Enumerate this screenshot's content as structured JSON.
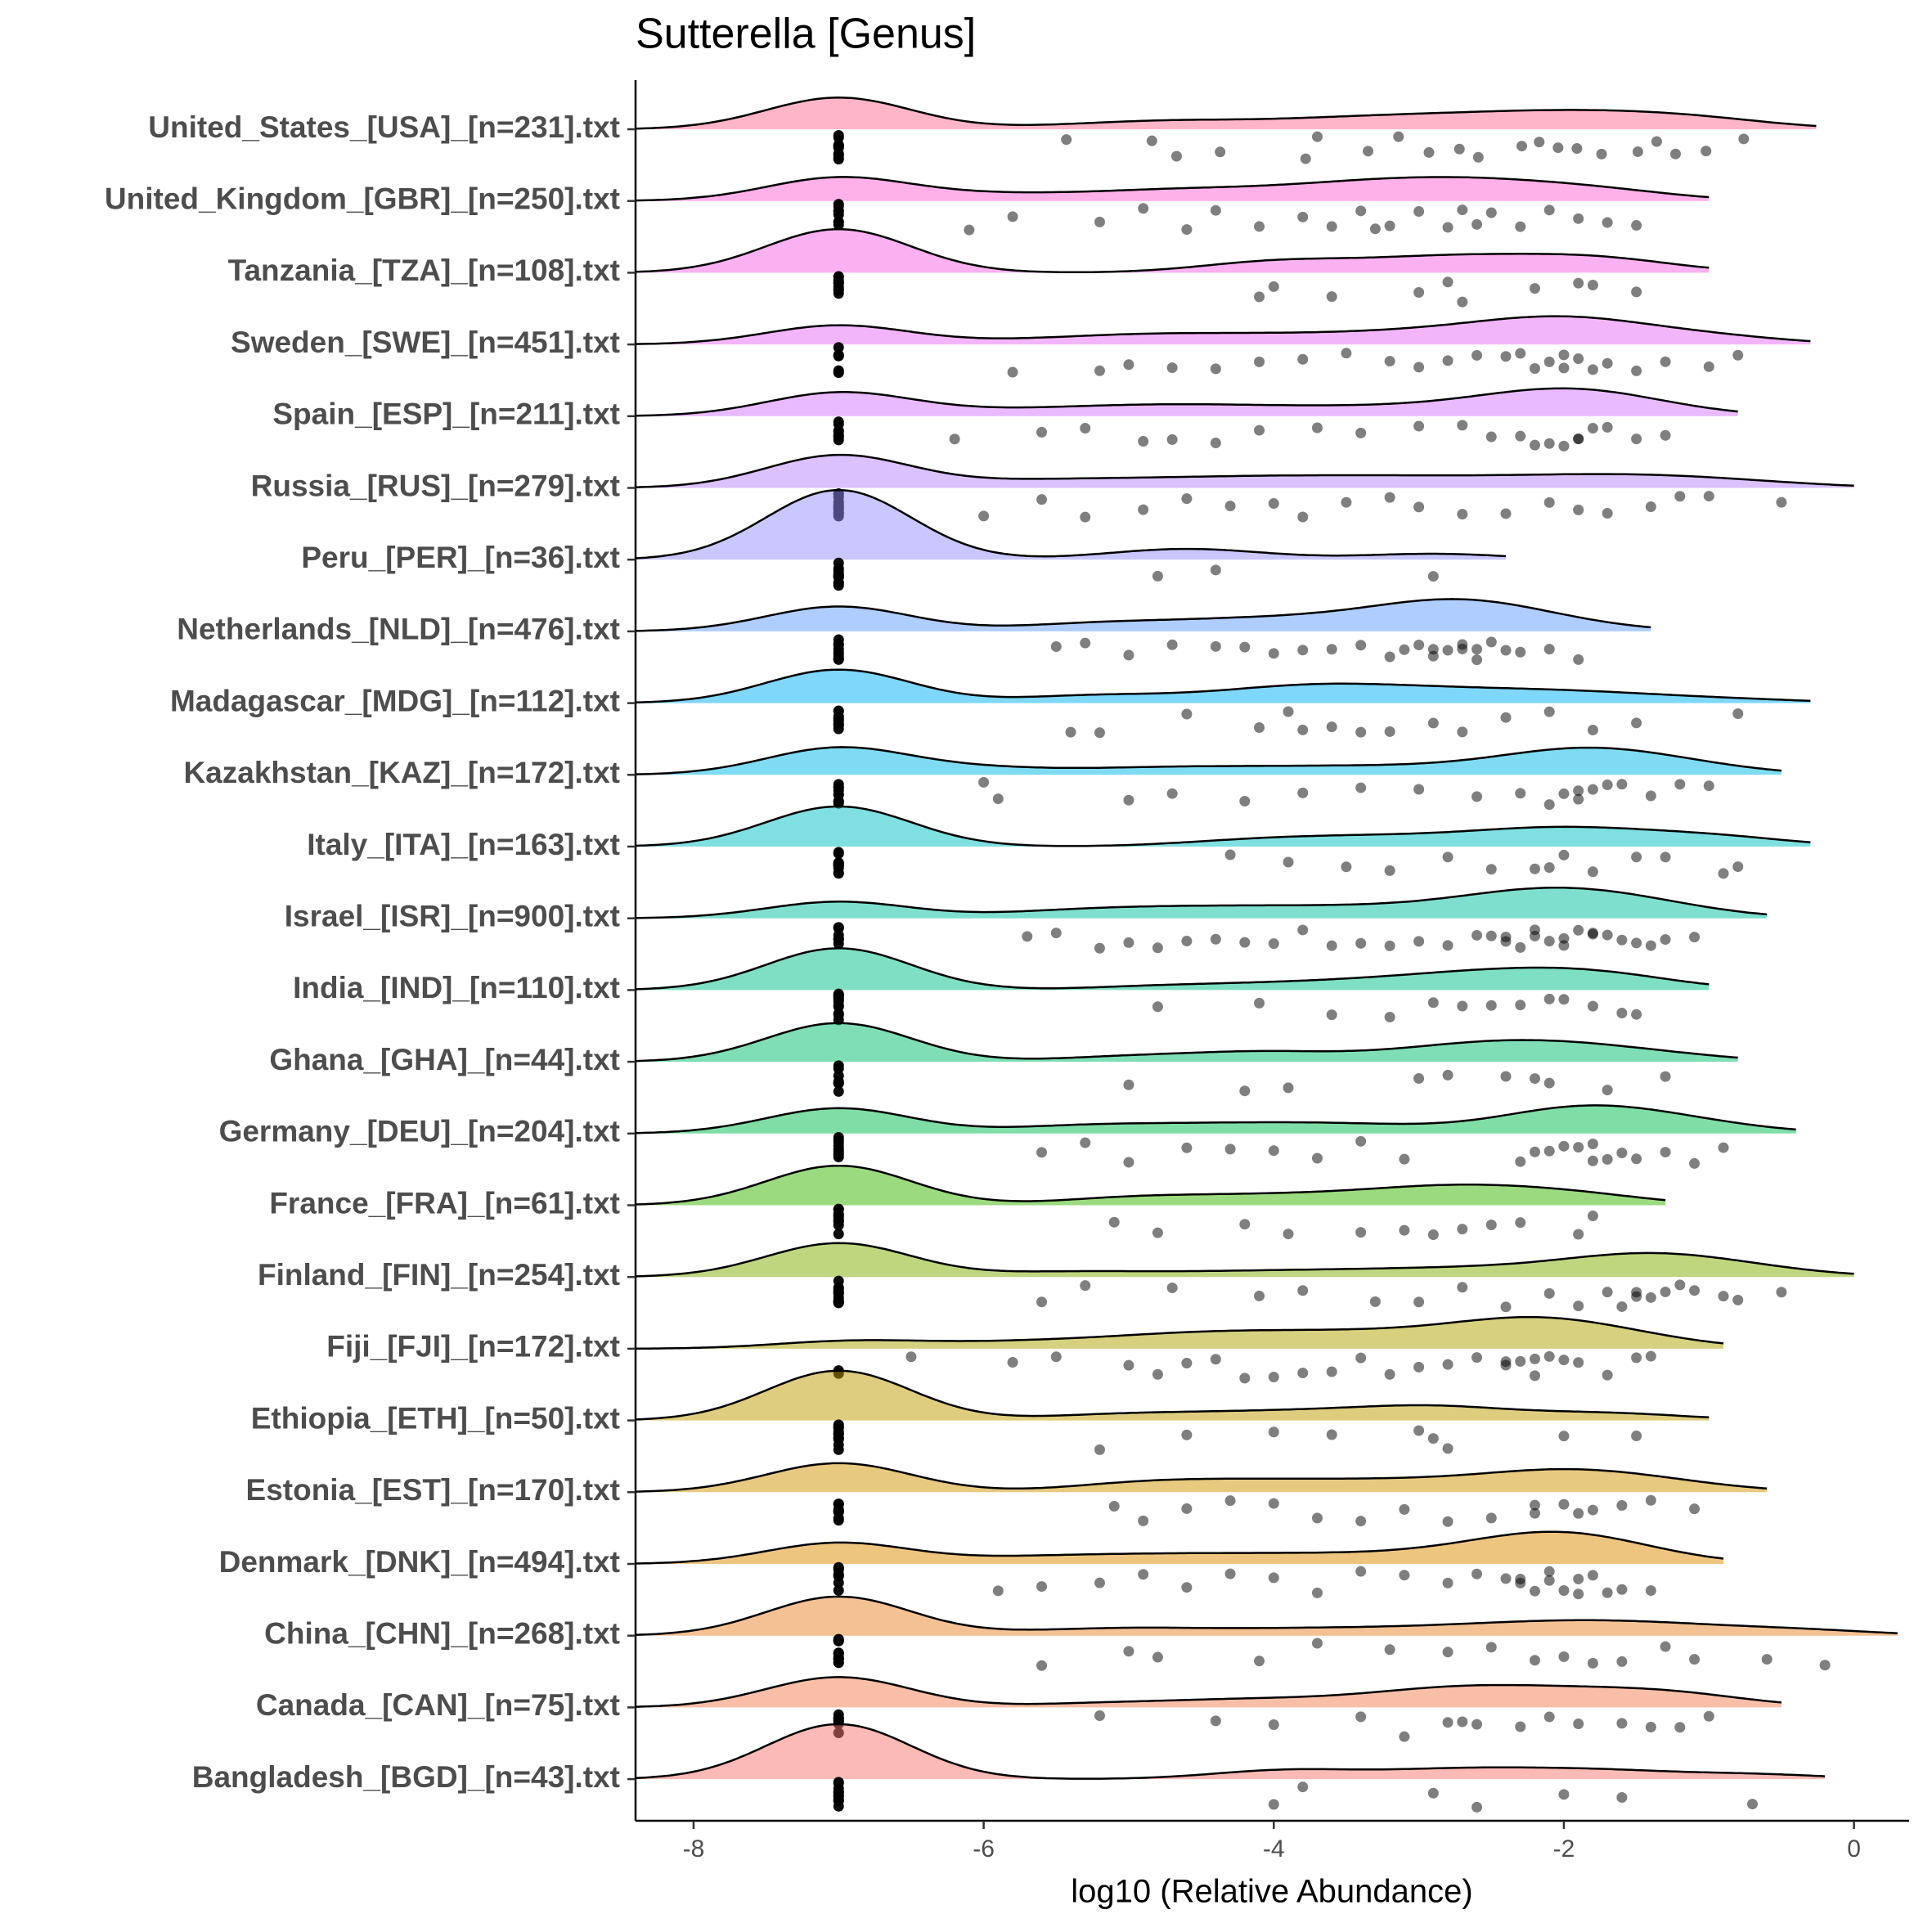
{
  "chart_data": {
    "type": "raincloud",
    "title": "Sutterella [Genus]",
    "x_label": "log10 (Relative Abundance)",
    "xlim": [
      -8.4,
      0.38
    ],
    "xticks": [
      -8,
      -6,
      -4,
      -2,
      0
    ],
    "series": [
      {
        "name": "United_States_[USA]_[n=231].txt",
        "color": "#FF6C91",
        "values": [
          -7,
          -7,
          -7,
          -7,
          -7,
          -7,
          -7,
          -7,
          -7,
          -7,
          -7,
          -7,
          -5.43,
          -4.84,
          -4.67,
          -4.37,
          -3.78,
          -3.7,
          -3.35,
          -3.14,
          -2.93,
          -2.72,
          -2.59,
          -2.29,
          -2.17,
          -2.04,
          -1.91,
          -1.74,
          -1.49,
          -1.36,
          -1.23,
          -1.02,
          -0.76
        ]
      },
      {
        "name": "United_Kingdom_[GBR]_[n=250].txt",
        "color": "#FD61D1",
        "values": [
          -7,
          -7,
          -7,
          -7,
          -7,
          -7,
          -7,
          -7,
          -6.1,
          -5.8,
          -5.2,
          -4.9,
          -4.6,
          -4.4,
          -4.1,
          -3.8,
          -3.6,
          -3.4,
          -3.2,
          -3.0,
          -2.8,
          -2.6,
          -2.5,
          -2.3,
          -2.1,
          -1.9,
          -1.7,
          -1.5,
          -2.7,
          -3.3
        ]
      },
      {
        "name": "Tanzania_[TZA]_[n=108].txt",
        "color": "#F564E3",
        "values": [
          -7,
          -7,
          -7,
          -7,
          -7,
          -7,
          -7,
          -7,
          -7,
          -7,
          -4.1,
          -4.0,
          -3.6,
          -3.0,
          -2.8,
          -2.7,
          -2.2,
          -1.9,
          -1.8,
          -1.5
        ]
      },
      {
        "name": "Sweden_[SWE]_[n=451].txt",
        "color": "#E76BF3",
        "values": [
          -7,
          -7,
          -7,
          -7,
          -7,
          -7,
          -7,
          -5.8,
          -5.2,
          -5.0,
          -4.7,
          -4.4,
          -4.1,
          -3.8,
          -3.5,
          -3.2,
          -3.0,
          -2.8,
          -2.6,
          -2.4,
          -2.2,
          -2.1,
          -2.0,
          -1.9,
          -1.8,
          -1.7,
          -1.5,
          -1.3,
          -1.0,
          -0.8,
          -2.3,
          -2.0
        ]
      },
      {
        "name": "Spain_[ESP]_[n=211].txt",
        "color": "#D376FF",
        "values": [
          -7,
          -7,
          -7,
          -7,
          -7,
          -7,
          -7,
          -7,
          -6.2,
          -5.6,
          -5.3,
          -4.9,
          -4.7,
          -4.4,
          -4.1,
          -3.7,
          -3.4,
          -3.0,
          -2.7,
          -2.5,
          -2.3,
          -2.1,
          -2.0,
          -1.9,
          -1.8,
          -1.7,
          -1.5,
          -1.3,
          -1.9,
          -2.2
        ]
      },
      {
        "name": "Russia_[RUS]_[n=279].txt",
        "color": "#B983FF",
        "values": [
          -7,
          -7,
          -7,
          -7,
          -7,
          -7,
          -7,
          -7,
          -7,
          -7,
          -7,
          -7,
          -6.0,
          -5.6,
          -5.3,
          -4.9,
          -4.6,
          -4.3,
          -4.0,
          -3.8,
          -3.5,
          -3.2,
          -3.0,
          -2.7,
          -2.4,
          -2.1,
          -1.9,
          -1.7,
          -1.4,
          -1.2,
          -1.0,
          -0.5
        ]
      },
      {
        "name": "Peru_[PER]_[n=36].txt",
        "color": "#9590FF",
        "values": [
          -7,
          -7,
          -7,
          -7,
          -7,
          -7,
          -7,
          -7,
          -7,
          -7,
          -7,
          -7,
          -4.8,
          -4.4,
          -2.9
        ]
      },
      {
        "name": "Netherlands_[NLD]_[n=476].txt",
        "color": "#619CFF",
        "values": [
          -7,
          -7,
          -7,
          -7,
          -7,
          -7,
          -7,
          -7,
          -7,
          -7,
          -5.5,
          -5.3,
          -5.0,
          -4.7,
          -4.4,
          -4.2,
          -4.0,
          -3.8,
          -3.6,
          -3.4,
          -3.2,
          -3.0,
          -2.9,
          -2.8,
          -2.7,
          -2.6,
          -2.5,
          -2.4,
          -2.3,
          -2.1,
          -1.9,
          -3.1,
          -2.7,
          -2.9,
          -2.6
        ]
      },
      {
        "name": "Madagascar_[MDG]_[n=112].txt",
        "color": "#00B0F6",
        "values": [
          -7,
          -7,
          -7,
          -7,
          -7,
          -7,
          -7,
          -7,
          -7,
          -7,
          -5.4,
          -5.2,
          -4.6,
          -4.1,
          -3.9,
          -3.6,
          -3.4,
          -3.2,
          -2.9,
          -2.7,
          -2.4,
          -2.1,
          -1.8,
          -1.5,
          -0.8,
          -3.8
        ]
      },
      {
        "name": "Kazakhstan_[KAZ]_[n=172].txt",
        "color": "#00B8E5",
        "values": [
          -7,
          -7,
          -7,
          -7,
          -7,
          -7,
          -7,
          -7,
          -7,
          -6.0,
          -5.9,
          -5.0,
          -4.7,
          -4.2,
          -3.8,
          -3.4,
          -3.0,
          -2.6,
          -2.3,
          -2.1,
          -1.9,
          -1.8,
          -1.7,
          -1.6,
          -1.4,
          -1.2,
          -1.0,
          -1.9,
          -2.0
        ]
      },
      {
        "name": "Italy_[ITA]_[n=163].txt",
        "color": "#00BFC4",
        "values": [
          -7,
          -7,
          -7,
          -7,
          -7,
          -7,
          -7,
          -7,
          -7,
          -7,
          -7,
          -7,
          -4.3,
          -3.9,
          -3.5,
          -3.2,
          -2.8,
          -2.5,
          -2.2,
          -2.0,
          -1.8,
          -1.5,
          -1.3,
          -0.9,
          -0.8,
          -2.1
        ]
      },
      {
        "name": "Israel_[ISR]_[n=900].txt",
        "color": "#00C0A0",
        "values": [
          -7,
          -7,
          -7,
          -7,
          -7,
          -7,
          -7,
          -7,
          -5.7,
          -5.5,
          -5.2,
          -5.0,
          -4.8,
          -4.6,
          -4.4,
          -4.2,
          -4.0,
          -3.8,
          -3.6,
          -3.4,
          -3.2,
          -3.0,
          -2.8,
          -2.6,
          -2.5,
          -2.4,
          -2.3,
          -2.2,
          -2.1,
          -2.0,
          -1.9,
          -1.8,
          -1.7,
          -1.6,
          -1.5,
          -1.4,
          -1.3,
          -1.1,
          -2.2,
          -2.0,
          -2.4,
          -1.8
        ]
      },
      {
        "name": "India_[IND]_[n=110].txt",
        "color": "#00BF87",
        "values": [
          -7,
          -7,
          -7,
          -7,
          -7,
          -7,
          -7,
          -7,
          -7,
          -7,
          -7,
          -7,
          -4.8,
          -4.1,
          -3.6,
          -3.2,
          -2.9,
          -2.7,
          -2.5,
          -2.3,
          -2.1,
          -2.0,
          -1.8,
          -1.6,
          -1.5
        ]
      },
      {
        "name": "Ghana_[GHA]_[n=44].txt",
        "color": "#00BE6C",
        "values": [
          -7,
          -7,
          -7,
          -7,
          -7,
          -7,
          -7,
          -7,
          -5.0,
          -4.2,
          -3.9,
          -3.0,
          -2.8,
          -2.4,
          -2.2,
          -2.1,
          -1.7,
          -1.3
        ]
      },
      {
        "name": "Germany_[DEU]_[n=204].txt",
        "color": "#00BB4E",
        "values": [
          -7,
          -7,
          -7,
          -7,
          -7,
          -7,
          -7,
          -7,
          -7,
          -5.6,
          -5.3,
          -5.0,
          -4.6,
          -4.3,
          -4.0,
          -3.7,
          -3.4,
          -3.1,
          -2.3,
          -2.1,
          -2.0,
          -1.9,
          -1.8,
          -1.7,
          -1.6,
          -1.5,
          -1.3,
          -1.1,
          -0.9,
          -1.8,
          -2.2
        ]
      },
      {
        "name": "France_[FRA]_[n=61].txt",
        "color": "#39B600",
        "values": [
          -7,
          -7,
          -7,
          -7,
          -7,
          -7,
          -7,
          -7,
          -7,
          -7,
          -5.1,
          -4.8,
          -4.2,
          -3.9,
          -3.4,
          -3.1,
          -2.9,
          -2.7,
          -2.5,
          -2.3,
          -1.9,
          -1.8
        ]
      },
      {
        "name": "Finland_[FIN]_[n=254].txt",
        "color": "#7FAE00",
        "values": [
          -7,
          -7,
          -7,
          -7,
          -7,
          -7,
          -7,
          -7,
          -7,
          -7,
          -7,
          -7,
          -7,
          -7,
          -5.6,
          -5.3,
          -4.7,
          -4.1,
          -3.8,
          -3.3,
          -3.0,
          -2.7,
          -2.4,
          -2.1,
          -1.9,
          -1.7,
          -1.6,
          -1.5,
          -1.4,
          -1.3,
          -1.2,
          -1.1,
          -0.9,
          -0.8,
          -0.5,
          -1.5
        ]
      },
      {
        "name": "Fiji_[FJI]_[n=172].txt",
        "color": "#AEA200",
        "values": [
          -7,
          -7,
          -6.5,
          -5.8,
          -5.5,
          -5.0,
          -4.8,
          -4.6,
          -4.4,
          -4.2,
          -4.0,
          -3.8,
          -3.6,
          -3.4,
          -3.2,
          -3.0,
          -2.8,
          -2.6,
          -2.4,
          -2.3,
          -2.2,
          -2.1,
          -2.0,
          -1.9,
          -1.7,
          -1.5,
          -1.4,
          -2.4,
          -2.2
        ]
      },
      {
        "name": "Ethiopia_[ETH]_[n=50].txt",
        "color": "#C09B00",
        "values": [
          -7,
          -7,
          -7,
          -7,
          -7,
          -7,
          -7,
          -7,
          -7,
          -7,
          -7,
          -7,
          -5.2,
          -4.6,
          -4.0,
          -3.6,
          -3.0,
          -2.9,
          -2.8,
          -2.0,
          -1.5
        ]
      },
      {
        "name": "Estonia_[EST]_[n=170].txt",
        "color": "#D09400",
        "values": [
          -7,
          -7,
          -7,
          -7,
          -7,
          -7,
          -7,
          -7,
          -7,
          -5.1,
          -4.9,
          -4.6,
          -4.3,
          -4.0,
          -3.7,
          -3.4,
          -3.1,
          -2.8,
          -2.5,
          -2.2,
          -2.0,
          -1.8,
          -1.6,
          -1.4,
          -1.1,
          -2.2,
          -1.9
        ]
      },
      {
        "name": "Denmark_[DNK]_[n=494].txt",
        "color": "#DE8C00",
        "values": [
          -7,
          -7,
          -7,
          -7,
          -7,
          -7,
          -7,
          -7,
          -5.9,
          -5.6,
          -5.2,
          -4.9,
          -4.6,
          -4.3,
          -4.0,
          -3.7,
          -3.4,
          -3.1,
          -2.8,
          -2.6,
          -2.4,
          -2.3,
          -2.2,
          -2.1,
          -2.0,
          -1.9,
          -1.8,
          -1.7,
          -1.6,
          -1.4,
          -2.1,
          -2.3,
          -1.9
        ]
      },
      {
        "name": "China_[CHN]_[n=268].txt",
        "color": "#E98429",
        "values": [
          -7,
          -7,
          -7,
          -7,
          -7,
          -7,
          -7,
          -7,
          -7,
          -7,
          -7,
          -7,
          -7,
          -5.6,
          -5.0,
          -4.8,
          -4.1,
          -3.7,
          -3.2,
          -2.8,
          -2.5,
          -2.2,
          -2.0,
          -1.8,
          -1.6,
          -1.3,
          -1.1,
          -0.6,
          -0.2
        ]
      },
      {
        "name": "Canada_[CAN]_[n=75].txt",
        "color": "#F27D52",
        "values": [
          -7,
          -7,
          -7,
          -7,
          -7,
          -7,
          -7,
          -7,
          -5.2,
          -4.4,
          -4.0,
          -3.4,
          -3.1,
          -2.8,
          -2.6,
          -2.3,
          -2.1,
          -1.9,
          -1.6,
          -1.4,
          -1.2,
          -1.0,
          -2.7
        ]
      },
      {
        "name": "Bangladesh_[BGD]_[n=43].txt",
        "color": "#F8766D",
        "values": [
          -7,
          -7,
          -7,
          -7,
          -7,
          -7,
          -7,
          -7,
          -7,
          -7,
          -7,
          -7,
          -4.0,
          -3.8,
          -2.9,
          -2.6,
          -2.0,
          -1.6,
          -0.7
        ]
      }
    ]
  }
}
